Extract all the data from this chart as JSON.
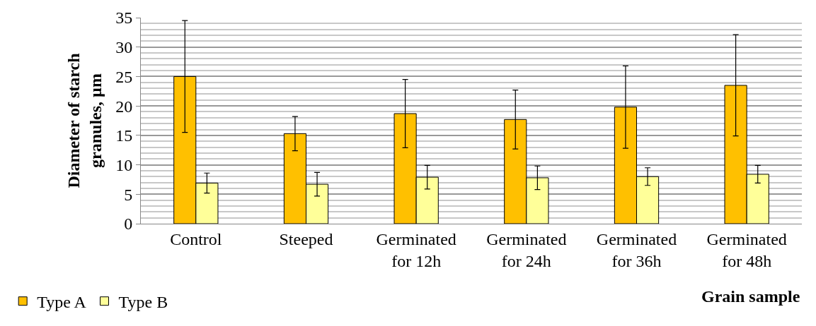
{
  "chart_data": {
    "type": "bar",
    "xlabel": "Grain sample",
    "ylabel": "Diameter of starch granules, µm",
    "categories": [
      "Control",
      "Steeped",
      "Germinated for 12h",
      "Germinated for 24h",
      "Germinated for 36h",
      "Germinated for 48h"
    ],
    "series": [
      {
        "name": "Type A",
        "color": "#ffc000",
        "values": [
          25,
          15.3,
          18.7,
          17.7,
          19.8,
          23.5
        ],
        "errors": [
          9.5,
          2.9,
          5.8,
          5,
          7,
          8.6
        ]
      },
      {
        "name": "Type B",
        "color": "#ffff99",
        "values": [
          6.9,
          6.7,
          7.9,
          7.8,
          8,
          8.4
        ],
        "errors": [
          1.7,
          2,
          2,
          2,
          1.5,
          1.5
        ]
      }
    ],
    "ylim": [
      0,
      35
    ],
    "yticks": [
      0,
      5,
      10,
      15,
      20,
      25,
      30,
      35
    ],
    "grid": true,
    "legend": "bottom left"
  }
}
